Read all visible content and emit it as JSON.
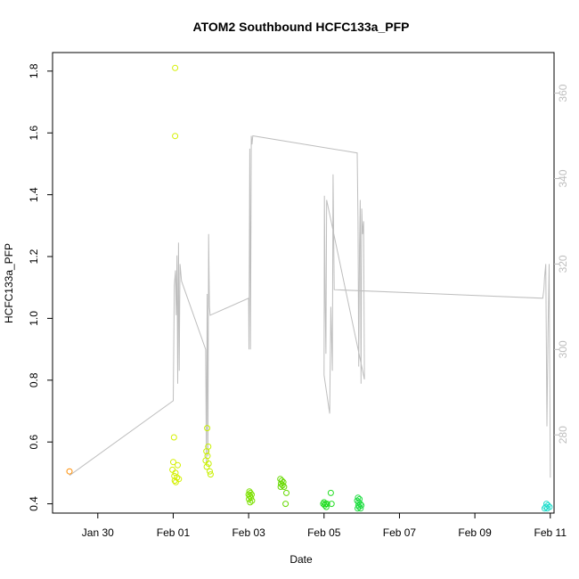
{
  "chart_data": {
    "type": "scatter",
    "title": "ATOM2 Southbound HCFC133a_PFP",
    "xlabel": "Date",
    "ylabel": "HCFC133a_PFP",
    "x_ticks": [
      "Jan 30",
      "Feb 01",
      "Feb 03",
      "Feb 05",
      "Feb 07",
      "Feb 09",
      "Feb 11"
    ],
    "y_ticks": [
      "0.4",
      "0.6",
      "0.8",
      "1.0",
      "1.2",
      "1.4",
      "1.6",
      "1.8"
    ],
    "y2_ticks": [
      "280",
      "300",
      "320",
      "340",
      "360"
    ],
    "xlim_days": [
      0.8,
      14.1
    ],
    "ylim": [
      0.37,
      1.86
    ],
    "y2lim": [
      261.7,
      369.5
    ],
    "grid": false,
    "secondary_line_color": "#bebebe",
    "points": [
      {
        "x": 1.25,
        "y": 0.505,
        "color": "#FF8C00"
      },
      {
        "x": 4.05,
        "y": 1.81,
        "color": "#D4F000"
      },
      {
        "x": 4.05,
        "y": 1.59,
        "color": "#D4F000"
      },
      {
        "x": 4.02,
        "y": 0.615,
        "color": "#D4F000"
      },
      {
        "x": 4.0,
        "y": 0.535,
        "color": "#D4F000"
      },
      {
        "x": 4.12,
        "y": 0.525,
        "color": "#D4F000"
      },
      {
        "x": 3.98,
        "y": 0.51,
        "color": "#D4F000"
      },
      {
        "x": 4.06,
        "y": 0.5,
        "color": "#D4F000"
      },
      {
        "x": 4.03,
        "y": 0.49,
        "color": "#D4F000"
      },
      {
        "x": 4.1,
        "y": 0.485,
        "color": "#D4F000"
      },
      {
        "x": 4.15,
        "y": 0.48,
        "color": "#D4F000"
      },
      {
        "x": 4.04,
        "y": 0.475,
        "color": "#D4F000"
      },
      {
        "x": 4.07,
        "y": 0.47,
        "color": "#D4F000"
      },
      {
        "x": 4.9,
        "y": 0.645,
        "color": "#C8F000"
      },
      {
        "x": 4.93,
        "y": 0.585,
        "color": "#C8F000"
      },
      {
        "x": 4.88,
        "y": 0.57,
        "color": "#C8F000"
      },
      {
        "x": 4.91,
        "y": 0.555,
        "color": "#C8F000"
      },
      {
        "x": 4.86,
        "y": 0.54,
        "color": "#C8F000"
      },
      {
        "x": 4.94,
        "y": 0.53,
        "color": "#C8F000"
      },
      {
        "x": 4.89,
        "y": 0.52,
        "color": "#C8F000"
      },
      {
        "x": 4.97,
        "y": 0.505,
        "color": "#C8F000"
      },
      {
        "x": 4.99,
        "y": 0.495,
        "color": "#C8F000"
      },
      {
        "x": 6.02,
        "y": 0.44,
        "color": "#7CE000"
      },
      {
        "x": 6.05,
        "y": 0.435,
        "color": "#7CE000"
      },
      {
        "x": 6.0,
        "y": 0.43,
        "color": "#7CE000"
      },
      {
        "x": 6.08,
        "y": 0.43,
        "color": "#7CE000"
      },
      {
        "x": 6.03,
        "y": 0.425,
        "color": "#7CE000"
      },
      {
        "x": 6.06,
        "y": 0.42,
        "color": "#7CE000"
      },
      {
        "x": 6.01,
        "y": 0.415,
        "color": "#7CE000"
      },
      {
        "x": 6.09,
        "y": 0.41,
        "color": "#7CE000"
      },
      {
        "x": 6.04,
        "y": 0.405,
        "color": "#7CE000"
      },
      {
        "x": 6.84,
        "y": 0.48,
        "color": "#66D900"
      },
      {
        "x": 6.88,
        "y": 0.475,
        "color": "#66D900"
      },
      {
        "x": 6.92,
        "y": 0.47,
        "color": "#66D900"
      },
      {
        "x": 6.86,
        "y": 0.465,
        "color": "#66D900"
      },
      {
        "x": 6.9,
        "y": 0.46,
        "color": "#66D900"
      },
      {
        "x": 6.85,
        "y": 0.455,
        "color": "#66D900"
      },
      {
        "x": 6.94,
        "y": 0.455,
        "color": "#66D900"
      },
      {
        "x": 7.0,
        "y": 0.435,
        "color": "#66D900"
      },
      {
        "x": 6.98,
        "y": 0.4,
        "color": "#66D900"
      },
      {
        "x": 8.0,
        "y": 0.405,
        "color": "#22DD22"
      },
      {
        "x": 8.04,
        "y": 0.4,
        "color": "#22DD22"
      },
      {
        "x": 7.98,
        "y": 0.4,
        "color": "#22DD22"
      },
      {
        "x": 8.08,
        "y": 0.4,
        "color": "#22DD22"
      },
      {
        "x": 8.02,
        "y": 0.395,
        "color": "#22DD22"
      },
      {
        "x": 8.06,
        "y": 0.39,
        "color": "#22DD22"
      },
      {
        "x": 8.18,
        "y": 0.435,
        "color": "#22DD22"
      },
      {
        "x": 8.2,
        "y": 0.4,
        "color": "#22DD22"
      },
      {
        "x": 8.9,
        "y": 0.42,
        "color": "#22DD44"
      },
      {
        "x": 8.94,
        "y": 0.415,
        "color": "#22DD44"
      },
      {
        "x": 8.88,
        "y": 0.41,
        "color": "#22DD44"
      },
      {
        "x": 8.92,
        "y": 0.405,
        "color": "#22DD44"
      },
      {
        "x": 8.96,
        "y": 0.4,
        "color": "#22DD44"
      },
      {
        "x": 8.91,
        "y": 0.395,
        "color": "#22DD44"
      },
      {
        "x": 8.99,
        "y": 0.395,
        "color": "#22DD44"
      },
      {
        "x": 8.93,
        "y": 0.39,
        "color": "#22DD44"
      },
      {
        "x": 8.89,
        "y": 0.385,
        "color": "#22DD44"
      },
      {
        "x": 8.97,
        "y": 0.385,
        "color": "#22DD44"
      },
      {
        "x": 13.9,
        "y": 0.4,
        "color": "#22DDCC"
      },
      {
        "x": 13.94,
        "y": 0.395,
        "color": "#22DDCC"
      },
      {
        "x": 13.88,
        "y": 0.39,
        "color": "#22DDCC"
      },
      {
        "x": 13.98,
        "y": 0.39,
        "color": "#22DDCC"
      },
      {
        "x": 13.85,
        "y": 0.385,
        "color": "#22DDCC"
      },
      {
        "x": 13.92,
        "y": 0.385,
        "color": "#22DDCC"
      }
    ],
    "secondary_line": [
      [
        1.25,
        270.5
      ],
      [
        4.0,
        288.0
      ],
      [
        4.03,
        315.0
      ],
      [
        4.06,
        318.5
      ],
      [
        4.08,
        308.0
      ],
      [
        4.1,
        322.0
      ],
      [
        4.12,
        292.0
      ],
      [
        4.14,
        325.0
      ],
      [
        4.16,
        295.0
      ],
      [
        4.18,
        320.0
      ],
      [
        4.22,
        316.0
      ],
      [
        4.86,
        300.0
      ],
      [
        4.88,
        273.0
      ],
      [
        4.9,
        313.0
      ],
      [
        4.92,
        275.0
      ],
      [
        4.94,
        327.0
      ],
      [
        4.96,
        310.0
      ],
      [
        4.98,
        308.0
      ],
      [
        6.0,
        312.0
      ],
      [
        6.01,
        300.0
      ],
      [
        6.03,
        347.0
      ],
      [
        6.05,
        300.0
      ],
      [
        6.07,
        350.0
      ],
      [
        6.09,
        348.0
      ],
      [
        6.11,
        350.0
      ],
      [
        8.88,
        346.0
      ],
      [
        8.9,
        330.0
      ],
      [
        8.92,
        296.0
      ],
      [
        8.94,
        324.0
      ],
      [
        8.96,
        335.0
      ],
      [
        8.98,
        292.0
      ],
      [
        9.0,
        333.0
      ],
      [
        9.02,
        327.0
      ],
      [
        9.05,
        330.0
      ],
      [
        9.07,
        293.0
      ],
      [
        8.07,
        335.0
      ],
      [
        8.05,
        299.0
      ],
      [
        8.03,
        310.0
      ],
      [
        8.01,
        336.0
      ],
      [
        8.0,
        294.0
      ],
      [
        8.15,
        285.0
      ],
      [
        8.18,
        310.0
      ],
      [
        8.22,
        295.0
      ],
      [
        8.24,
        341.0
      ],
      [
        8.27,
        314.0
      ],
      [
        13.8,
        312.0
      ],
      [
        13.83,
        314.0
      ],
      [
        13.85,
        317.0
      ],
      [
        13.88,
        320.0
      ],
      [
        13.91,
        282.0
      ],
      [
        13.94,
        304.0
      ],
      [
        13.97,
        320.0
      ],
      [
        14.0,
        270.0
      ]
    ]
  }
}
